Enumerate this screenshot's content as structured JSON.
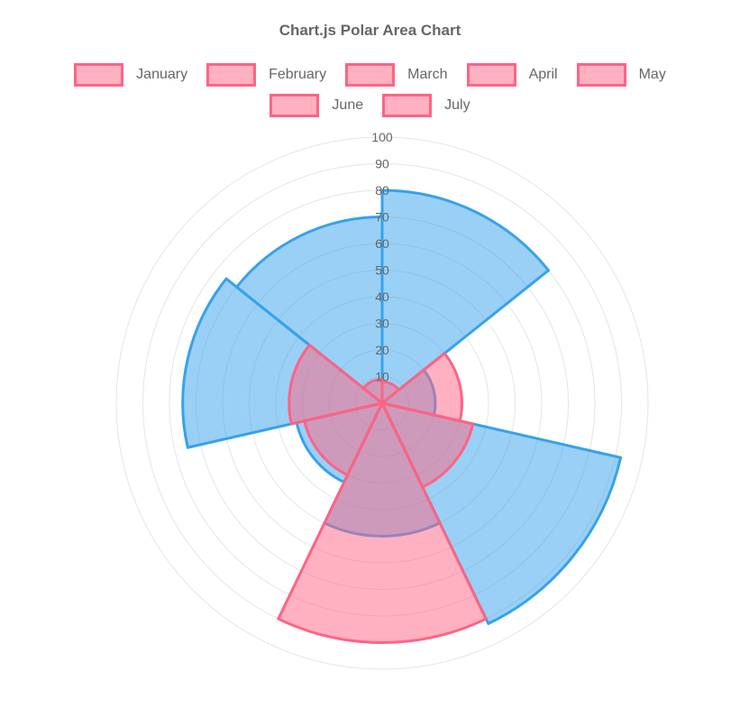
{
  "chart_data": {
    "type": "polarArea",
    "title": "Chart.js Polar Area Chart",
    "categories": [
      "January",
      "February",
      "March",
      "April",
      "May",
      "June",
      "July"
    ],
    "series": [
      {
        "id": "blue",
        "border": "#36A2EB",
        "fill": "#36A2EB",
        "fill_opacity": 0.5,
        "values": [
          80,
          20,
          92,
          50,
          33,
          75,
          70
        ]
      },
      {
        "id": "pink",
        "border": "#FF6384",
        "fill": "#FF6384",
        "fill_opacity": 0.5,
        "values": [
          8,
          30,
          35,
          90,
          30,
          35,
          9
        ]
      }
    ],
    "rmin": 0,
    "rmax": 100,
    "ticks": [
      10,
      20,
      30,
      40,
      50,
      60,
      70,
      80,
      90,
      100
    ],
    "start": "top",
    "direction": "clockwise",
    "grid": true,
    "legend_position": "top"
  },
  "legend": {
    "rows": [
      [
        "January",
        "February",
        "March",
        "April",
        "May"
      ],
      [
        "June",
        "July"
      ]
    ],
    "swatch_border": "#FF6384",
    "swatch_fill": "rgba(255, 99, 132, 0.5)"
  },
  "colors": {
    "title_text": "#666666",
    "legend_text": "#666666",
    "tick_text": "#666666",
    "grid_line": "#E5E5E5",
    "background": "#FFFFFF"
  }
}
